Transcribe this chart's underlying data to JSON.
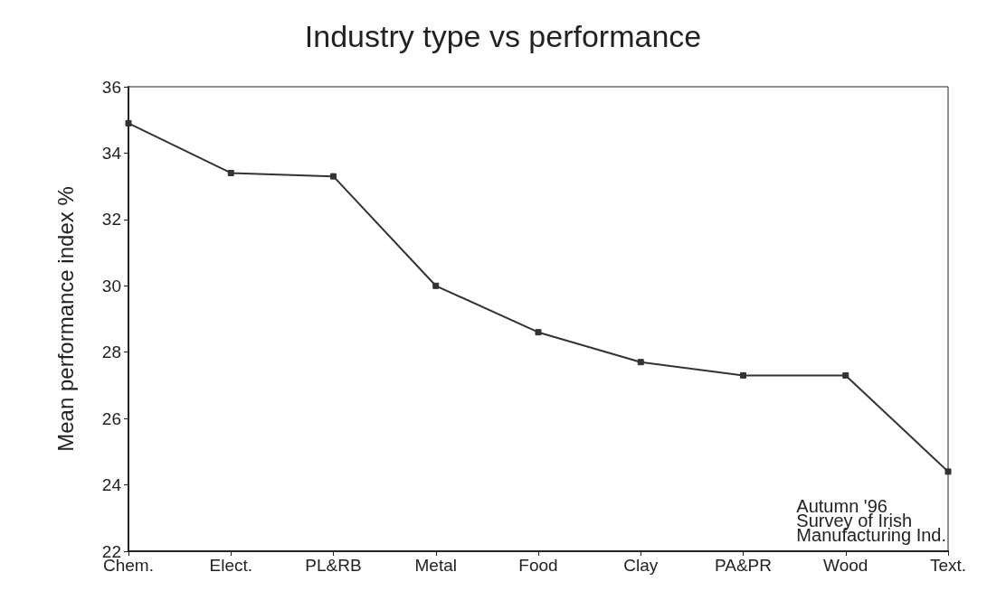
{
  "chart_data": {
    "type": "line",
    "title": "Industry type vs performance",
    "ylabel": "Mean performance index %",
    "categories": [
      "Chem.",
      "Elect.",
      "PL&RB",
      "Metal",
      "Food",
      "Clay",
      "PA&PR",
      "Wood",
      "Text."
    ],
    "series": [
      {
        "color": "#333333",
        "values": [
          34.9,
          33.4,
          33.3,
          30.0,
          28.6,
          27.7,
          27.3,
          27.3,
          24.4
        ]
      }
    ],
    "ylim": [
      22,
      36
    ],
    "yticks": [
      22,
      24,
      26,
      28,
      30,
      32,
      34,
      36
    ],
    "grid": false,
    "marker": "square",
    "line_style": "solid",
    "annotations": [
      "Autumn '96\nSurvey of Irish\nManufacturing Ind."
    ]
  }
}
